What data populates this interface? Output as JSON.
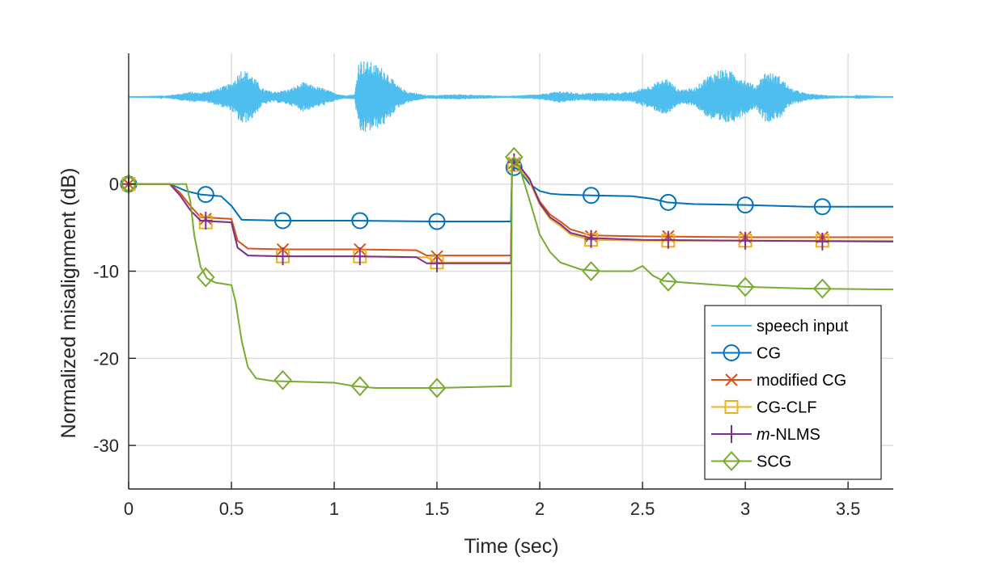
{
  "chart_data": {
    "type": "line",
    "title": "",
    "xlabel": "Time (sec)",
    "ylabel": "Normalized misalignment (dB)",
    "xlim": [
      0,
      3.72
    ],
    "ylim": [
      -35,
      15
    ],
    "xticks": [
      0,
      0.5,
      1,
      1.5,
      2,
      2.5,
      3,
      3.5
    ],
    "xtick_labels": [
      "0",
      "0.5",
      "1",
      "1.5",
      "2",
      "2.5",
      "3",
      "3.5"
    ],
    "yticks": [
      -30,
      -20,
      -10,
      0
    ],
    "ytick_labels": [
      "-30",
      "-20",
      "-10",
      "0"
    ],
    "grid": true,
    "legend_position": "bottom-right",
    "speech_input": {
      "name": "speech input",
      "color": "#4DBEEE",
      "baseline": 10,
      "envelope": [
        [
          0.0,
          0.0
        ],
        [
          0.15,
          0.05
        ],
        [
          0.25,
          0.4
        ],
        [
          0.3,
          0.6
        ],
        [
          0.35,
          0.5
        ],
        [
          0.42,
          0.9
        ],
        [
          0.5,
          1.6
        ],
        [
          0.55,
          3.3
        ],
        [
          0.6,
          2.6
        ],
        [
          0.65,
          1.0
        ],
        [
          0.7,
          0.6
        ],
        [
          0.78,
          0.9
        ],
        [
          0.85,
          1.7
        ],
        [
          0.9,
          1.3
        ],
        [
          0.95,
          1.0
        ],
        [
          1.0,
          0.5
        ],
        [
          1.05,
          0.2
        ],
        [
          1.1,
          0.3
        ],
        [
          1.12,
          4.4
        ],
        [
          1.18,
          4.0
        ],
        [
          1.25,
          3.2
        ],
        [
          1.3,
          1.5
        ],
        [
          1.35,
          0.7
        ],
        [
          1.45,
          0.2
        ],
        [
          1.6,
          0.3
        ],
        [
          1.75,
          0.2
        ],
        [
          1.85,
          0.1
        ],
        [
          1.9,
          0.2
        ],
        [
          2.0,
          0.3
        ],
        [
          2.1,
          0.7
        ],
        [
          2.2,
          0.4
        ],
        [
          2.25,
          0.5
        ],
        [
          2.35,
          0.5
        ],
        [
          2.45,
          0.6
        ],
        [
          2.55,
          1.5
        ],
        [
          2.62,
          2.2
        ],
        [
          2.67,
          0.9
        ],
        [
          2.75,
          1.0
        ],
        [
          2.82,
          2.5
        ],
        [
          2.88,
          3.3
        ],
        [
          2.95,
          2.8
        ],
        [
          3.0,
          2.0
        ],
        [
          3.05,
          1.3
        ],
        [
          3.1,
          3.0
        ],
        [
          3.17,
          2.4
        ],
        [
          3.22,
          1.0
        ],
        [
          3.3,
          0.4
        ],
        [
          3.4,
          0.2
        ],
        [
          3.5,
          0.1
        ],
        [
          3.72,
          0.0
        ]
      ]
    },
    "series": [
      {
        "name": "CG",
        "color": "#0072BD",
        "marker": "circle",
        "x": [
          0,
          0.2,
          0.28,
          0.35,
          0.4,
          0.45,
          0.5,
          0.55,
          0.75,
          1.1,
          1.5,
          1.86,
          1.865,
          1.875,
          1.9,
          1.95,
          2.0,
          2.05,
          2.1,
          2.25,
          2.45,
          2.55,
          2.62,
          2.75,
          3.0,
          3.3,
          3.72
        ],
        "y": [
          0,
          0,
          -0.8,
          -1.2,
          -1.3,
          -1.4,
          -2.5,
          -4.1,
          -4.2,
          -4.2,
          -4.3,
          -4.3,
          1.6,
          1.9,
          1.6,
          0.0,
          -0.8,
          -1.1,
          -1.2,
          -1.3,
          -1.4,
          -1.7,
          -2.1,
          -2.3,
          -2.4,
          -2.6,
          -2.6
        ],
        "markers_x": [
          0,
          0.375,
          0.75,
          1.125,
          1.5,
          1.875,
          2.25,
          2.625,
          3.0,
          3.375
        ],
        "markers_y": [
          0,
          -1.2,
          -4.2,
          -4.2,
          -4.3,
          1.9,
          -1.3,
          -2.1,
          -2.4,
          -2.6
        ]
      },
      {
        "name": "modified CG",
        "color": "#D95319",
        "marker": "x",
        "x": [
          0,
          0.2,
          0.25,
          0.3,
          0.35,
          0.5,
          0.53,
          0.58,
          0.75,
          1.1,
          1.4,
          1.45,
          1.86,
          1.865,
          1.875,
          1.9,
          1.95,
          2.0,
          2.05,
          2.1,
          2.15,
          2.25,
          2.5,
          3.0,
          3.72
        ],
        "y": [
          0,
          0,
          -1.0,
          -2.5,
          -3.8,
          -4.0,
          -6.5,
          -7.4,
          -7.5,
          -7.5,
          -7.6,
          -8.2,
          -8.2,
          2.0,
          2.4,
          2.0,
          0.5,
          -2.0,
          -3.5,
          -4.3,
          -5.2,
          -5.9,
          -6.0,
          -6.1,
          -6.1
        ],
        "markers_x": [
          0,
          0.375,
          0.75,
          1.125,
          1.5,
          1.875,
          2.25,
          2.625,
          3.0,
          3.375
        ],
        "markers_y": [
          0,
          -4.0,
          -7.5,
          -7.5,
          -8.3,
          2.4,
          -6.0,
          -6.0,
          -6.1,
          -6.1
        ]
      },
      {
        "name": "CG-CLF",
        "color": "#EDB120",
        "marker": "square",
        "x": [
          0,
          0.2,
          0.25,
          0.3,
          0.35,
          0.5,
          0.53,
          0.58,
          0.75,
          1.1,
          1.45,
          1.5,
          1.86,
          1.865,
          1.875,
          1.9,
          1.95,
          2.0,
          2.05,
          2.1,
          2.15,
          2.25,
          2.5,
          3.0,
          3.72
        ],
        "y": [
          0,
          0,
          -1.3,
          -3.0,
          -4.2,
          -4.4,
          -7.3,
          -8.2,
          -8.3,
          -8.3,
          -8.4,
          -9.0,
          -9.0,
          1.8,
          2.2,
          1.8,
          0.3,
          -2.3,
          -4.0,
          -4.8,
          -5.8,
          -6.4,
          -6.5,
          -6.5,
          -6.5
        ],
        "markers_x": [
          0,
          0.375,
          0.75,
          1.125,
          1.5,
          1.875,
          2.25,
          2.625,
          3.0,
          3.375
        ],
        "markers_y": [
          0,
          -4.4,
          -8.3,
          -8.3,
          -9.0,
          2.2,
          -6.4,
          -6.5,
          -6.5,
          -6.5
        ]
      },
      {
        "name": "m-NLMS",
        "color": "#7E2F8E",
        "marker": "plus",
        "x": [
          0,
          0.2,
          0.25,
          0.3,
          0.35,
          0.5,
          0.53,
          0.58,
          0.75,
          1.1,
          1.4,
          1.45,
          1.86,
          1.865,
          1.875,
          1.9,
          1.95,
          2.0,
          2.05,
          2.1,
          2.15,
          2.25,
          2.5,
          3.0,
          3.72
        ],
        "y": [
          0,
          0,
          -1.3,
          -3.0,
          -4.2,
          -4.4,
          -7.3,
          -8.2,
          -8.3,
          -8.3,
          -8.4,
          -9.1,
          -9.1,
          2.1,
          2.5,
          2.1,
          0.6,
          -2.2,
          -3.8,
          -4.6,
          -5.6,
          -6.2,
          -6.4,
          -6.5,
          -6.6
        ],
        "markers_x": [
          0,
          0.375,
          0.75,
          1.125,
          1.5,
          1.875,
          2.25,
          2.625,
          3.0,
          3.375
        ],
        "markers_y": [
          0,
          -4.2,
          -8.3,
          -8.3,
          -9.1,
          2.5,
          -6.3,
          -6.4,
          -6.5,
          -6.6
        ]
      },
      {
        "name": "SCG",
        "color": "#77AC30",
        "marker": "diamond",
        "x": [
          0,
          0.28,
          0.3,
          0.32,
          0.35,
          0.38,
          0.42,
          0.5,
          0.52,
          0.55,
          0.58,
          0.62,
          0.7,
          1.0,
          1.1,
          1.2,
          1.5,
          1.86,
          1.865,
          1.875,
          1.9,
          1.95,
          2.0,
          2.05,
          2.1,
          2.2,
          2.3,
          2.45,
          2.5,
          2.55,
          2.6,
          2.7,
          3.0,
          3.3,
          3.72
        ],
        "y": [
          0,
          0,
          -2.0,
          -6.0,
          -9.5,
          -10.8,
          -11.3,
          -11.6,
          -13.5,
          -18.0,
          -21.0,
          -22.3,
          -22.6,
          -22.8,
          -23.2,
          -23.4,
          -23.4,
          -23.2,
          2.8,
          3.1,
          2.0,
          -1.8,
          -5.8,
          -7.8,
          -9.0,
          -9.8,
          -10.0,
          -10.0,
          -9.4,
          -10.5,
          -11.1,
          -11.3,
          -11.8,
          -12.0,
          -12.1
        ],
        "markers_x": [
          0,
          0.375,
          0.75,
          1.125,
          1.5,
          1.875,
          2.25,
          2.625,
          3.0,
          3.375
        ],
        "markers_y": [
          0,
          -10.7,
          -22.5,
          -23.2,
          -23.4,
          3.1,
          -10.0,
          -11.2,
          -11.8,
          -12.0
        ]
      }
    ],
    "legend": [
      {
        "label": "speech input",
        "color": "#4DBEEE",
        "marker": "none"
      },
      {
        "label": "CG",
        "color": "#0072BD",
        "marker": "circle"
      },
      {
        "label": "modified CG",
        "color": "#D95319",
        "marker": "x"
      },
      {
        "label": "CG-CLF",
        "color": "#EDB120",
        "marker": "square"
      },
      {
        "label_italic": "m",
        "label": "-NLMS",
        "color": "#7E2F8E",
        "marker": "plus"
      },
      {
        "label": "SCG",
        "color": "#77AC30",
        "marker": "diamond"
      }
    ]
  }
}
